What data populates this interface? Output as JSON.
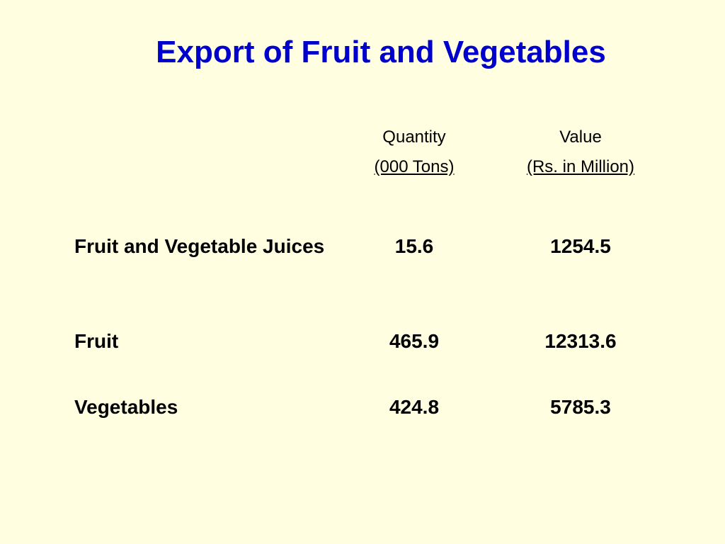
{
  "title": "Export of Fruit and Vegetables",
  "columns": {
    "quantity": {
      "header": "Quantity",
      "unit": "(000 Tons)"
    },
    "value": {
      "header": "Value",
      "unit": "(Rs. in Million)"
    }
  },
  "rows": [
    {
      "label": "Fruit and Vegetable Juices",
      "quantity": "15.6",
      "value": "1254.5"
    },
    {
      "label": "Fruit",
      "quantity": "465.9",
      "value": "12313.6"
    },
    {
      "label": "Vegetables",
      "quantity": "424.8",
      "value": "5785.3"
    }
  ],
  "colors": {
    "background": "#FFFEE0",
    "title": "#0000CC",
    "text": "#000000"
  }
}
